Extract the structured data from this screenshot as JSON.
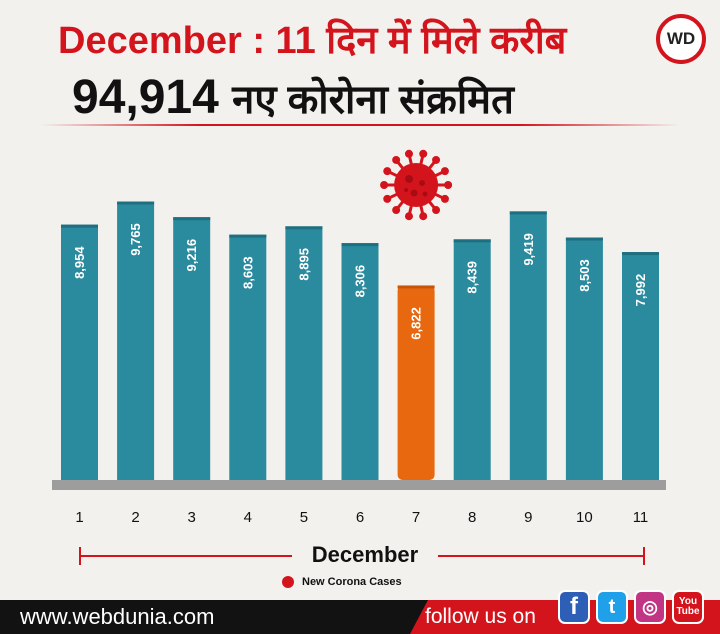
{
  "header": {
    "line1": "December : 11 दिन में मिले करीब",
    "number": "94,914",
    "line2_rest": "नए कोरोना संक्रमित",
    "logo_text": "WD"
  },
  "chart_data": {
    "type": "bar",
    "categories": [
      "1",
      "2",
      "3",
      "4",
      "5",
      "6",
      "7",
      "8",
      "9",
      "10",
      "11"
    ],
    "series": [
      {
        "name": "New Corona Cases",
        "values": [
          8954,
          9765,
          9216,
          8603,
          8895,
          8306,
          6822,
          8439,
          9419,
          8503,
          7992
        ]
      }
    ],
    "value_labels": [
      "8,954",
      "9,765",
      "9,216",
      "8,603",
      "8,895",
      "8,306",
      "6,822",
      "8,439",
      "9,419",
      "8,503",
      "7,992"
    ],
    "highlight_index": 6,
    "xlabel": "December",
    "ylabel": "",
    "ylim": [
      0,
      10800
    ],
    "grid": false,
    "legend": "bottom-center",
    "colors": {
      "bar": "#2a8a9e",
      "highlight": "#e8680f",
      "virus": "#d4141c"
    }
  },
  "legend": {
    "label": "New Corona Cases"
  },
  "footer": {
    "site": "www.webdunia.com",
    "follow": "follow us on",
    "social": [
      {
        "name": "facebook-icon",
        "glyph": "f"
      },
      {
        "name": "twitter-icon",
        "glyph": "t"
      },
      {
        "name": "instagram-icon",
        "glyph": "◎"
      },
      {
        "name": "youtube-icon",
        "glyph": "You Tube"
      }
    ]
  }
}
